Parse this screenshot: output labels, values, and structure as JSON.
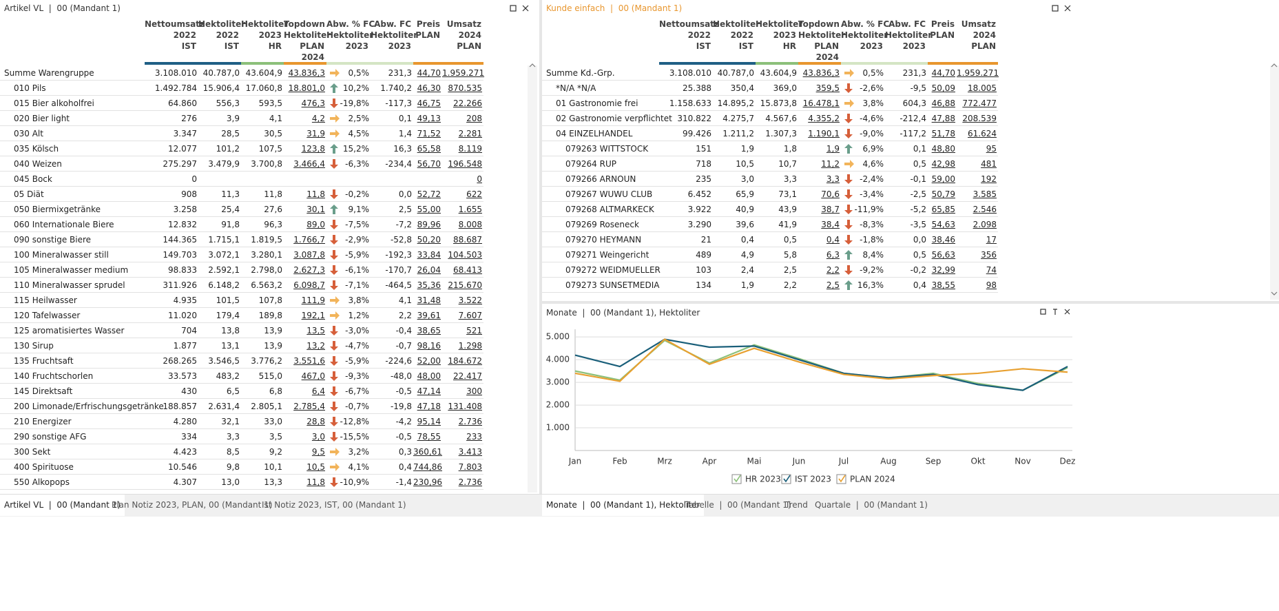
{
  "left_panel": {
    "title": "Artikel VL  |  00 (Mandant 1)",
    "columns": [
      {
        "lines": [
          "Nettoumsatz",
          "2022",
          "IST"
        ],
        "color": "#1f5f85"
      },
      {
        "lines": [
          "Hektoliter",
          "2022",
          "IST"
        ],
        "color": "#1f5f85"
      },
      {
        "lines": [
          "Hektoliter",
          "2023",
          "HR"
        ],
        "color": "#8cc07a"
      },
      {
        "lines": [
          "Topdown",
          "Hektoliter",
          "PLAN",
          "2024"
        ],
        "color": "#e8962e"
      },
      {
        "lines": [
          "Abw. % FC",
          "Hektoliter",
          "2023"
        ],
        "color": "#d4e5c4"
      },
      {
        "lines": [
          "Abw. FC",
          "Hektoliter",
          "2023"
        ],
        "color": "#d4e5c4"
      },
      {
        "lines": [
          "Preis",
          "PLAN"
        ],
        "color": "#e8962e"
      },
      {
        "lines": [
          "Umsatz",
          "2024",
          "PLAN"
        ],
        "color": "#e8962e"
      }
    ],
    "rows": [
      {
        "name": "Summe Warengruppe",
        "arrow": "right",
        "cells": [
          "3.108.010",
          "40.787,0",
          "43.604,9",
          "43.836,3",
          "0,5%",
          "231,3",
          "44,70",
          "1.959.271"
        ]
      },
      {
        "name": "010 Pils",
        "arrow": "up",
        "cells": [
          "1.492.784",
          "15.906,4",
          "17.060,8",
          "18.801,0",
          "10,2%",
          "1.740,2",
          "46,30",
          "870.535"
        ]
      },
      {
        "name": "015 Bier alkoholfrei",
        "arrow": "down",
        "cells": [
          "64.860",
          "556,3",
          "593,5",
          "476,3",
          "-19,8%",
          "-117,3",
          "46,75",
          "22.266"
        ]
      },
      {
        "name": "020 Bier light",
        "arrow": "right",
        "cells": [
          "276",
          "3,9",
          "4,1",
          "4,2",
          "2,5%",
          "0,1",
          "49,13",
          "208"
        ]
      },
      {
        "name": "030 Alt",
        "arrow": "right",
        "cells": [
          "3.347",
          "28,5",
          "30,5",
          "31,9",
          "4,5%",
          "1,4",
          "71,52",
          "2.281"
        ]
      },
      {
        "name": "035 Kölsch",
        "arrow": "up",
        "cells": [
          "12.077",
          "101,2",
          "107,5",
          "123,8",
          "15,2%",
          "16,3",
          "65,58",
          "8.119"
        ]
      },
      {
        "name": "040 Weizen",
        "arrow": "down",
        "cells": [
          "275.297",
          "3.479,9",
          "3.700,8",
          "3.466,4",
          "-6,3%",
          "-234,4",
          "56,70",
          "196.548"
        ]
      },
      {
        "name": "045 Bock",
        "arrow": null,
        "cells": [
          "0",
          null,
          null,
          null,
          null,
          null,
          null,
          "0"
        ]
      },
      {
        "name": "05 Diät",
        "arrow": "down",
        "cells": [
          "908",
          "11,3",
          "11,8",
          "11,8",
          "-0,2%",
          "0,0",
          "52,72",
          "622"
        ]
      },
      {
        "name": "050 Biermixgetränke",
        "arrow": "up",
        "cells": [
          "3.258",
          "25,4",
          "27,6",
          "30,1",
          "9,1%",
          "2,5",
          "55,00",
          "1.655"
        ]
      },
      {
        "name": "060 Internationale Biere",
        "arrow": "down",
        "cells": [
          "12.832",
          "91,8",
          "96,3",
          "89,0",
          "-7,5%",
          "-7,2",
          "89,96",
          "8.008"
        ]
      },
      {
        "name": "090 sonstige Biere",
        "arrow": "down",
        "cells": [
          "144.365",
          "1.715,1",
          "1.819,5",
          "1.766,7",
          "-2,9%",
          "-52,8",
          "50,20",
          "88.687"
        ]
      },
      {
        "name": "100 Mineralwasser still",
        "arrow": "down",
        "cells": [
          "149.703",
          "3.072,1",
          "3.280,1",
          "3.087,8",
          "-5,9%",
          "-192,3",
          "33,84",
          "104.503"
        ]
      },
      {
        "name": "105 Mineralwasser medium",
        "arrow": "down",
        "cells": [
          "98.833",
          "2.592,1",
          "2.798,0",
          "2.627,3",
          "-6,1%",
          "-170,7",
          "26,04",
          "68.413"
        ]
      },
      {
        "name": "110 Mineralwasser sprudel",
        "arrow": "down",
        "cells": [
          "311.926",
          "6.148,2",
          "6.563,2",
          "6.098,7",
          "-7,1%",
          "-464,5",
          "35,36",
          "215.670"
        ]
      },
      {
        "name": "115 Heilwasser",
        "arrow": "right",
        "cells": [
          "4.935",
          "101,5",
          "107,8",
          "111,9",
          "3,8%",
          "4,1",
          "31,48",
          "3.522"
        ]
      },
      {
        "name": "120 Tafelwasser",
        "arrow": "right",
        "cells": [
          "11.020",
          "179,4",
          "189,8",
          "192,1",
          "1,2%",
          "2,2",
          "39,61",
          "7.607"
        ]
      },
      {
        "name": "125 aromatisiertes Wasser",
        "arrow": "down",
        "cells": [
          "704",
          "13,8",
          "13,9",
          "13,5",
          "-3,0%",
          "-0,4",
          "38,65",
          "521"
        ]
      },
      {
        "name": "130 Sirup",
        "arrow": "down",
        "cells": [
          "1.877",
          "13,1",
          "13,9",
          "13,2",
          "-4,7%",
          "-0,7",
          "98,16",
          "1.298"
        ]
      },
      {
        "name": "135 Fruchtsaft",
        "arrow": "down",
        "cells": [
          "268.265",
          "3.546,5",
          "3.776,2",
          "3.551,6",
          "-5,9%",
          "-224,6",
          "52,00",
          "184.672"
        ]
      },
      {
        "name": "140 Fruchtschorlen",
        "arrow": "down",
        "cells": [
          "33.573",
          "483,2",
          "515,0",
          "467,0",
          "-9,3%",
          "-48,0",
          "48,00",
          "22.417"
        ]
      },
      {
        "name": "145 Direktsaft",
        "arrow": "down",
        "cells": [
          "430",
          "6,5",
          "6,8",
          "6,4",
          "-6,7%",
          "-0,5",
          "47,14",
          "300"
        ]
      },
      {
        "name": "200 Limonade/Erfrischungsgetränke",
        "arrow": "down",
        "cells": [
          "188.857",
          "2.631,4",
          "2.805,1",
          "2.785,4",
          "-0,7%",
          "-19,8",
          "47,18",
          "131.408"
        ]
      },
      {
        "name": "210 Energizer",
        "arrow": "down",
        "cells": [
          "4.280",
          "32,1",
          "33,0",
          "28,8",
          "-12,8%",
          "-4,2",
          "95,14",
          "2.736"
        ]
      },
      {
        "name": "290 sonstige AFG",
        "arrow": "down",
        "cells": [
          "334",
          "3,3",
          "3,5",
          "3,0",
          "-15,5%",
          "-0,5",
          "78,55",
          "233"
        ]
      },
      {
        "name": "300 Sekt",
        "arrow": "right",
        "cells": [
          "4.423",
          "8,5",
          "9,2",
          "9,5",
          "3,2%",
          "0,3",
          "360,61",
          "3.413"
        ]
      },
      {
        "name": "400 Spirituose",
        "arrow": "right",
        "cells": [
          "10.546",
          "9,8",
          "10,1",
          "10,5",
          "4,1%",
          "0,4",
          "744,86",
          "7.803"
        ]
      },
      {
        "name": "550 Alkopops",
        "arrow": "down",
        "cells": [
          "4.307",
          "13,0",
          "13,3",
          "11,8",
          "-10,9%",
          "-1,4",
          "230,96",
          "2.736"
        ]
      }
    ]
  },
  "right_panel": {
    "title": "Kunde einfach  |  00 (Mandant 1)",
    "title_color": "#e8962e",
    "columns": [
      {
        "lines": [
          "Nettoumsatz",
          "2022",
          "IST"
        ],
        "color": "#1f5f85"
      },
      {
        "lines": [
          "Hektoliter",
          "2022",
          "IST"
        ],
        "color": "#1f5f85"
      },
      {
        "lines": [
          "Hektoliter",
          "2023",
          "HR"
        ],
        "color": "#8cc07a"
      },
      {
        "lines": [
          "Topdown",
          "Hektoliter",
          "PLAN",
          "2024"
        ],
        "color": "#e8962e"
      },
      {
        "lines": [
          "Abw. % FC",
          "Hektoliter",
          "2023"
        ],
        "color": "#d4e5c4"
      },
      {
        "lines": [
          "Abw. FC",
          "Hektoliter",
          "2023"
        ],
        "color": "#d4e5c4"
      },
      {
        "lines": [
          "Preis",
          "PLAN"
        ],
        "color": "#e8962e"
      },
      {
        "lines": [
          "Umsatz",
          "2024",
          "PLAN"
        ],
        "color": "#e8962e"
      }
    ],
    "rows": [
      {
        "name": "Summe Kd.-Grp.",
        "arrow": "right",
        "cells": [
          "3.108.010",
          "40.787,0",
          "43.604,9",
          "43.836,3",
          "0,5%",
          "231,3",
          "44,70",
          "1.959.271"
        ]
      },
      {
        "name": "*N/A *N/A",
        "arrow": "down",
        "cells": [
          "25.388",
          "350,4",
          "369,0",
          "359,5",
          "-2,6%",
          "-9,5",
          "50,09",
          "18.005"
        ]
      },
      {
        "name": "01 Gastronomie frei",
        "arrow": "right",
        "cells": [
          "1.158.633",
          "14.895,2",
          "15.873,8",
          "16.478,1",
          "3,8%",
          "604,3",
          "46,88",
          "772.477"
        ]
      },
      {
        "name": "02 Gastronomie verpflichtet",
        "arrow": "down",
        "cells": [
          "310.822",
          "4.275,7",
          "4.567,6",
          "4.355,2",
          "-4,6%",
          "-212,4",
          "47,88",
          "208.539"
        ]
      },
      {
        "name": "04 EINZELHANDEL",
        "arrow": "down",
        "cells": [
          "99.426",
          "1.211,2",
          "1.307,3",
          "1.190,1",
          "-9,0%",
          "-117,2",
          "51,78",
          "61.624"
        ]
      },
      {
        "name": "079263 WITTSTOCK",
        "arrow": "up",
        "cells": [
          "151",
          "1,9",
          "1,8",
          "1,9",
          "6,9%",
          "0,1",
          "48,80",
          "95"
        ]
      },
      {
        "name": "079264 RUP",
        "arrow": "right",
        "cells": [
          "718",
          "10,5",
          "10,7",
          "11,2",
          "4,6%",
          "0,5",
          "42,98",
          "481"
        ]
      },
      {
        "name": "079266 ARNOUN",
        "arrow": "down",
        "cells": [
          "235",
          "3,0",
          "3,3",
          "3,3",
          "-2,4%",
          "-0,1",
          "59,00",
          "192"
        ]
      },
      {
        "name": "079267 WUWU CLUB",
        "arrow": "down",
        "cells": [
          "6.452",
          "65,9",
          "73,1",
          "70,6",
          "-3,4%",
          "-2,5",
          "50,79",
          "3.585"
        ]
      },
      {
        "name": "079268 ALTMARKECK",
        "arrow": "down",
        "cells": [
          "3.922",
          "40,9",
          "43,9",
          "38,7",
          "-11,9%",
          "-5,2",
          "65,85",
          "2.546"
        ]
      },
      {
        "name": "079269 Roseneck",
        "arrow": "down",
        "cells": [
          "3.290",
          "39,6",
          "41,9",
          "38,4",
          "-8,3%",
          "-3,5",
          "54,63",
          "2.098"
        ]
      },
      {
        "name": "079270 HEYMANN",
        "arrow": "down",
        "cells": [
          "21",
          "0,4",
          "0,5",
          "0,4",
          "-1,8%",
          "0,0",
          "38,46",
          "17"
        ]
      },
      {
        "name": "079271 Weingericht",
        "arrow": "up",
        "cells": [
          "489",
          "4,9",
          "5,8",
          "6,3",
          "8,4%",
          "0,5",
          "56,63",
          "356"
        ]
      },
      {
        "name": "079272 WEIDMUELLER",
        "arrow": "down",
        "cells": [
          "103",
          "2,4",
          "2,5",
          "2,2",
          "-9,2%",
          "-0,2",
          "32,99",
          "74"
        ]
      },
      {
        "name": "079273 SUNSETMEDIA",
        "arrow": "up",
        "cells": [
          "134",
          "1,9",
          "2,2",
          "2,5",
          "16,3%",
          "0,4",
          "38,55",
          "98"
        ]
      }
    ]
  },
  "chart_data": {
    "type": "line",
    "title": "Monate  |  00 (Mandant 1), Hektoliter",
    "categories": [
      "Jan",
      "Feb",
      "Mrz",
      "Apr",
      "Mai",
      "Jun",
      "Jul",
      "Aug",
      "Sep",
      "Okt",
      "Nov",
      "Dez"
    ],
    "series": [
      {
        "name": "HR 2023",
        "color": "#8cc07a",
        "values": [
          3500,
          3100,
          4850,
          3850,
          4650,
          4050,
          3400,
          3200,
          3400,
          2950,
          2650,
          3650
        ]
      },
      {
        "name": "IST 2023",
        "color": "#1a5f7a",
        "values": [
          4200,
          3700,
          4900,
          4550,
          4600,
          4000,
          3400,
          3200,
          3350,
          2900,
          2650,
          3700
        ]
      },
      {
        "name": "PLAN 2024",
        "color": "#e8a030",
        "values": [
          3400,
          3050,
          4900,
          3800,
          4500,
          3900,
          3350,
          3150,
          3300,
          3400,
          3600,
          3450
        ]
      }
    ],
    "ylim": [
      0,
      5400
    ],
    "yticks": [
      {
        "value": 1000,
        "label": "1.000"
      },
      {
        "value": 2000,
        "label": "2.000"
      },
      {
        "value": 3000,
        "label": "3.000"
      },
      {
        "value": 4000,
        "label": "4.000"
      },
      {
        "value": 5000,
        "label": "5.000"
      }
    ],
    "grid": true
  },
  "tabs_left": [
    {
      "label": "Artikel VL  |  00 (Mandant 1)",
      "active": true
    },
    {
      "label": "Plan Notiz 2023, PLAN, 00 (Mandant 1)",
      "active": false
    },
    {
      "label": "Ist Notiz 2023, IST, 00 (Mandant 1)",
      "active": false
    }
  ],
  "tabs_right": [
    {
      "label": "Monate  |  00 (Mandant 1), Hektoliter",
      "active": true
    },
    {
      "label": "Tabelle  |  00 (Mandant 1)",
      "active": false
    },
    {
      "label": "Trend",
      "active": false
    },
    {
      "label": "Quartale  |  00 (Mandant 1)",
      "active": false
    }
  ]
}
